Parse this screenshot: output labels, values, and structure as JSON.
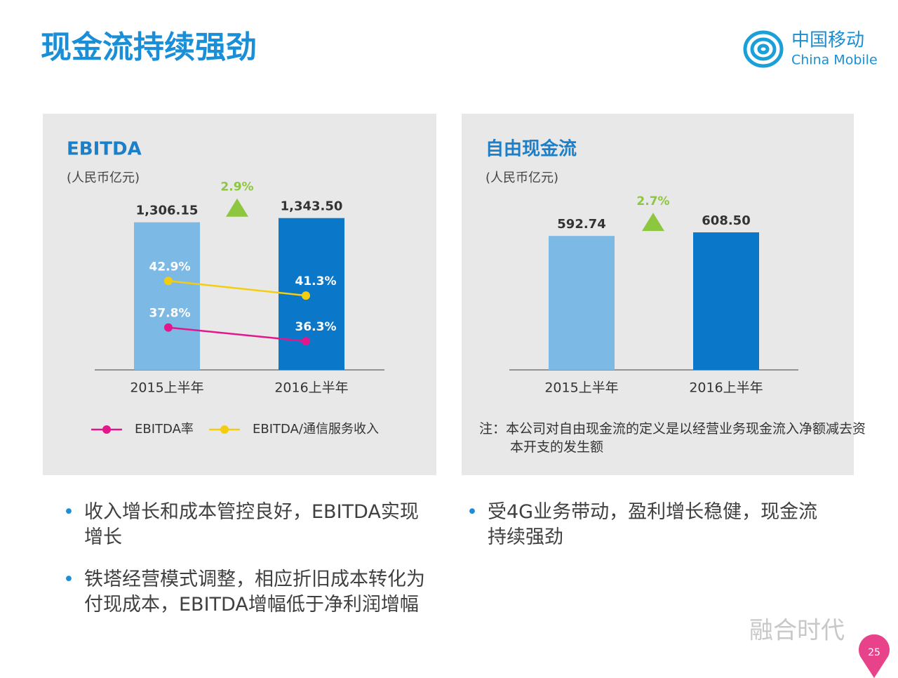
{
  "header": {
    "title": "现金流持续强劲"
  },
  "logo": {
    "name_cn": "中国移动",
    "name_en": "China Mobile"
  },
  "chart_data": [
    {
      "type": "bar",
      "title": "EBITDA",
      "subtitle": "(人民币亿元)",
      "categories": [
        "2015上半年",
        "2016上半年"
      ],
      "values": [
        1306.15,
        1343.5
      ],
      "value_labels": [
        "1,306.15",
        "1,343.50"
      ],
      "colors": [
        "#7db9e5",
        "#0b77c9"
      ],
      "annotation": "2.9%",
      "annotation_color": "#8dc63f",
      "series": [
        {
          "type": "line",
          "name": "EBITDA率",
          "color": "#e3168c",
          "values": [
            37.8,
            36.3
          ],
          "value_labels": [
            "37.8%",
            "36.3%"
          ]
        },
        {
          "type": "line",
          "name": "EBITDA/通信服务收入",
          "color": "#f4cd10",
          "values": [
            42.9,
            41.3
          ],
          "value_labels": [
            "42.9%",
            "41.3%"
          ]
        }
      ]
    },
    {
      "type": "bar",
      "title": "自由现金流",
      "subtitle": "(人民币亿元)",
      "categories": [
        "2015上半年",
        "2016上半年"
      ],
      "values": [
        592.74,
        608.5
      ],
      "value_labels": [
        "592.74",
        "608.50"
      ],
      "colors": [
        "#7db9e5",
        "#0b77c9"
      ],
      "annotation": "2.7%",
      "annotation_color": "#8dc63f",
      "note": "注：本公司对自由现金流的定义是以经营业务现金流入净额减去资本开支的发生额"
    }
  ],
  "bullets": {
    "left": [
      "收入增长和成本管控良好，EBITDA实现增长",
      "铁塔经营模式调整，相应折旧成本转化为付现成本，EBITDA增幅低于净利润增幅"
    ],
    "right": [
      "受4G业务带动，盈利增长稳健，现金流持续强劲"
    ]
  },
  "watermark": "融合时代",
  "page_number": "25"
}
